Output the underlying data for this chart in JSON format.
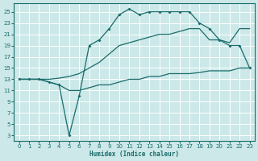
{
  "xlabel": "Humidex (Indice chaleur)",
  "bg_color": "#cce8e8",
  "grid_color": "#ffffff",
  "line_color": "#1a6b6b",
  "xlim": [
    -0.5,
    23.5
  ],
  "ylim": [
    2,
    26.5
  ],
  "xticks": [
    0,
    1,
    2,
    3,
    4,
    5,
    6,
    7,
    8,
    9,
    10,
    11,
    12,
    13,
    14,
    15,
    16,
    17,
    18,
    19,
    20,
    21,
    22,
    23
  ],
  "yticks": [
    3,
    5,
    7,
    9,
    11,
    13,
    15,
    17,
    19,
    21,
    23,
    25
  ],
  "line1_x": [
    0,
    1,
    2,
    3,
    4,
    5,
    6,
    7,
    8,
    9,
    10,
    11,
    12,
    13,
    14,
    15,
    16,
    17,
    18,
    19,
    20,
    21,
    22,
    23
  ],
  "line1_y": [
    13,
    13,
    13,
    12.5,
    12,
    3,
    10,
    19,
    20,
    22,
    24.5,
    25.5,
    24.5,
    25,
    25,
    25,
    25,
    25,
    23,
    22,
    20,
    19,
    19,
    15
  ],
  "line2_x": [
    0,
    1,
    2,
    3,
    4,
    5,
    6,
    7,
    8,
    9,
    10,
    11,
    12,
    13,
    14,
    15,
    16,
    17,
    18,
    19,
    20,
    21,
    22,
    23
  ],
  "line2_y": [
    13,
    13,
    13,
    13,
    13.2,
    13.5,
    14,
    15,
    16,
    17.5,
    19,
    19.5,
    20,
    20.5,
    21,
    21,
    21.5,
    22,
    22,
    20,
    20,
    19.5,
    22,
    22
  ],
  "line3_x": [
    0,
    1,
    2,
    3,
    4,
    5,
    6,
    7,
    8,
    9,
    10,
    11,
    12,
    13,
    14,
    15,
    16,
    17,
    18,
    19,
    20,
    21,
    22,
    23
  ],
  "line3_y": [
    13,
    13,
    13,
    12.5,
    12,
    11,
    11,
    11.5,
    12,
    12,
    12.5,
    13,
    13,
    13.5,
    13.5,
    14,
    14,
    14,
    14.2,
    14.5,
    14.5,
    14.5,
    15,
    15
  ]
}
